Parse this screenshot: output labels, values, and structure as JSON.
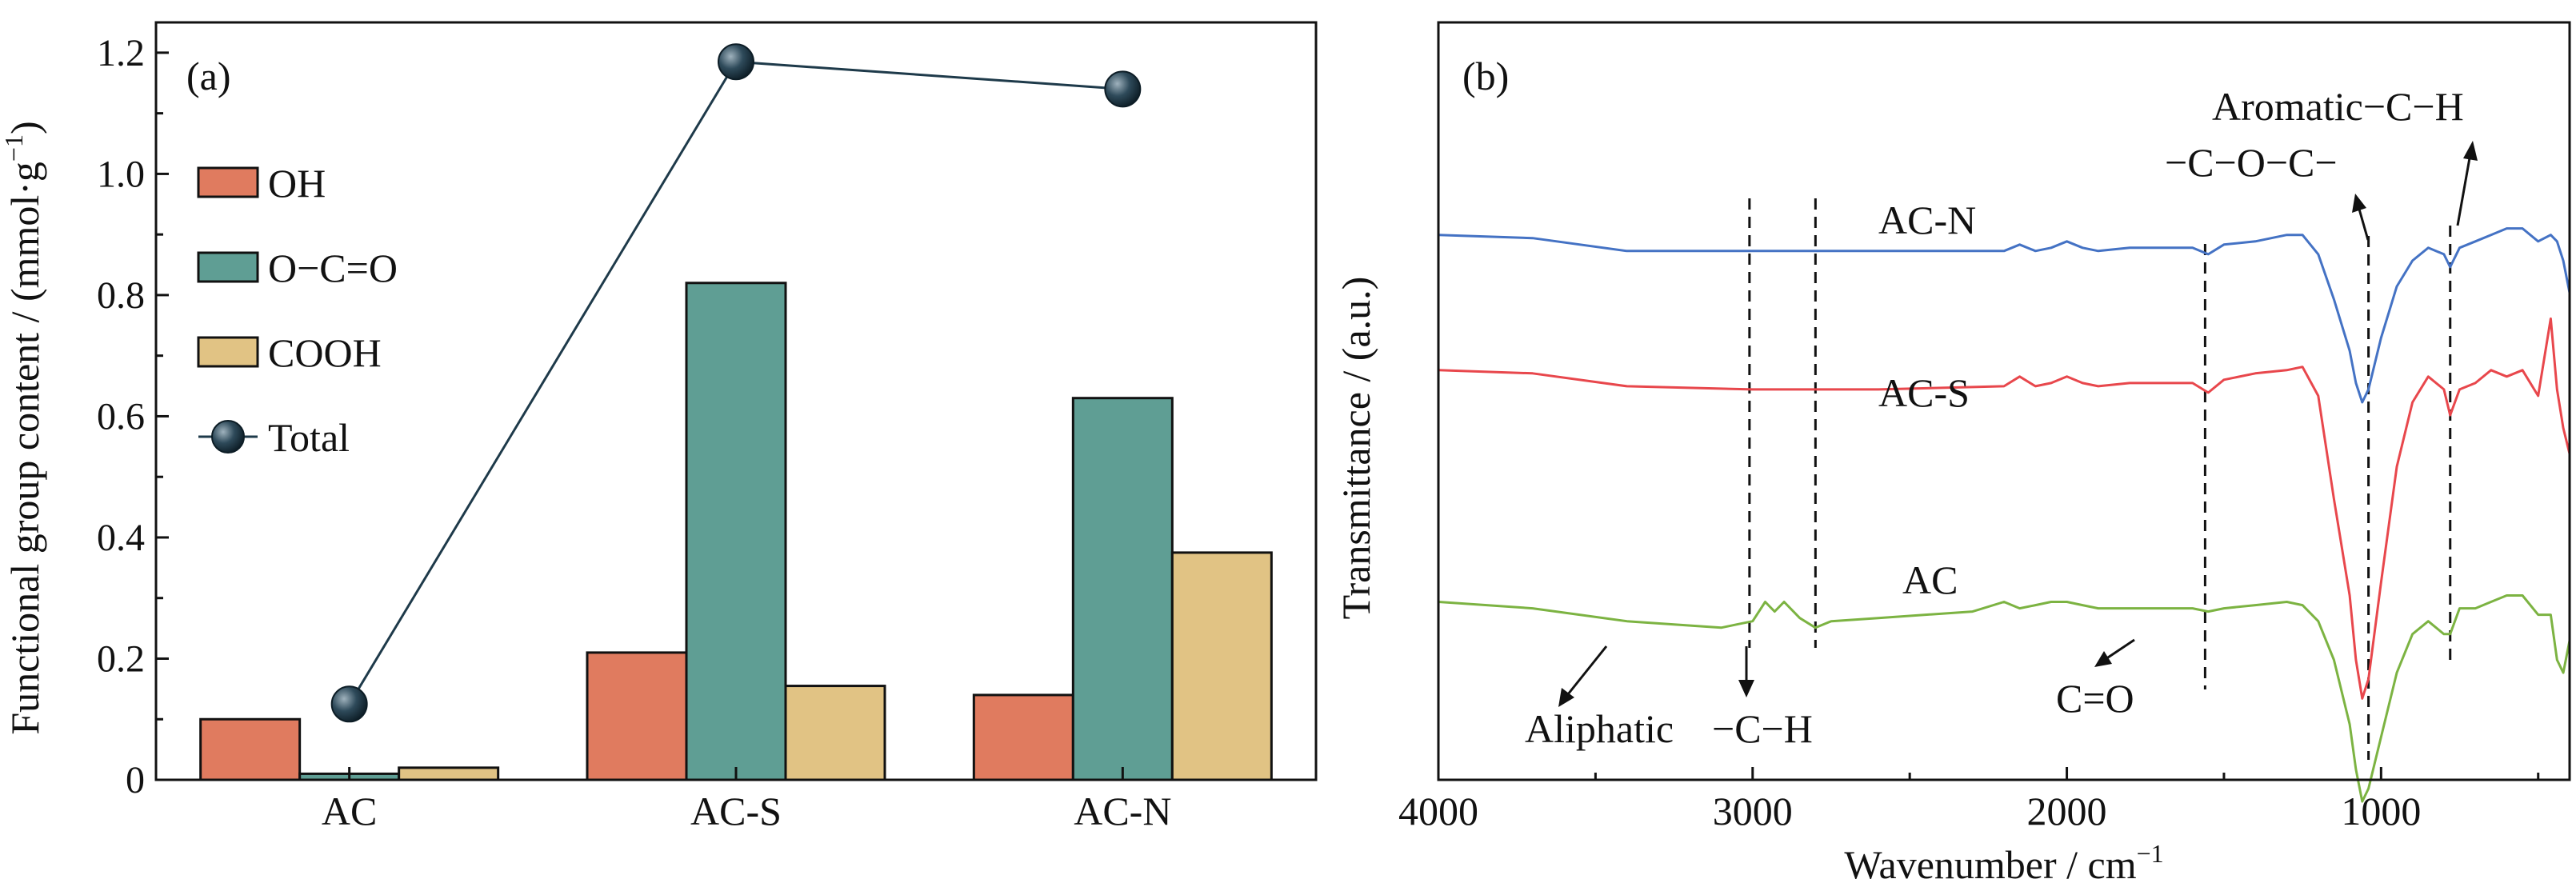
{
  "chart_data": [
    {
      "type": "bar",
      "panel_label": "(a)",
      "ylabel": "Functional group content / (mmol·g",
      "ylabel_sup": "−1",
      "ylabel_close": ")",
      "ylim": [
        0,
        1.25
      ],
      "yticks": [
        "0",
        "0.2",
        "0.4",
        "0.6",
        "0.8",
        "1.0",
        "1.2"
      ],
      "categories": [
        "AC",
        "AC-S",
        "AC-N"
      ],
      "series": [
        {
          "name": "OH",
          "values": [
            0.1,
            0.21,
            0.14
          ],
          "color": "#E07B5F"
        },
        {
          "name": "O−C=O",
          "values": [
            0.01,
            0.82,
            0.63
          ],
          "color": "#5F9E94"
        },
        {
          "name": "COOH",
          "values": [
            0.02,
            0.155,
            0.375
          ],
          "color": "#E1C384"
        }
      ],
      "line_series": {
        "name": "Total",
        "values": [
          0.125,
          1.185,
          1.14
        ],
        "color": "#1E3A4A"
      },
      "legend": "upper-left"
    },
    {
      "type": "line",
      "panel_label": "(b)",
      "xlabel": "Wavenumber / cm",
      "xlabel_sup": "−1",
      "ylabel": "Transmittance / (a.u.)",
      "xlim": [
        4000,
        400
      ],
      "xticks": [
        "4000",
        "3000",
        "2000",
        "1000"
      ],
      "series": [
        {
          "name": "AC-N",
          "color": "#4472C4",
          "x": [
            4000,
            3700,
            3400,
            3000,
            2600,
            2200,
            2150,
            2100,
            2050,
            2000,
            1950,
            1900,
            1800,
            1600,
            1550,
            1500,
            1400,
            1300,
            1250,
            1200,
            1150,
            1100,
            1080,
            1060,
            1040,
            1000,
            950,
            900,
            850,
            800,
            780,
            750,
            700,
            650,
            600,
            550,
            500,
            460,
            440,
            420,
            400
          ],
          "y": [
            0.86,
            0.855,
            0.835,
            0.835,
            0.835,
            0.835,
            0.845,
            0.835,
            0.84,
            0.85,
            0.84,
            0.835,
            0.84,
            0.84,
            0.83,
            0.845,
            0.85,
            0.86,
            0.86,
            0.83,
            0.76,
            0.68,
            0.63,
            0.6,
            0.62,
            0.7,
            0.78,
            0.82,
            0.84,
            0.83,
            0.81,
            0.84,
            0.85,
            0.86,
            0.87,
            0.87,
            0.85,
            0.86,
            0.85,
            0.82,
            0.77
          ]
        },
        {
          "name": "AC-S",
          "color": "#E8474C",
          "x": [
            4000,
            3700,
            3400,
            3000,
            2600,
            2200,
            2150,
            2100,
            2050,
            2000,
            1950,
            1900,
            1800,
            1600,
            1550,
            1500,
            1400,
            1300,
            1250,
            1200,
            1150,
            1100,
            1080,
            1060,
            1040,
            1000,
            950,
            900,
            850,
            800,
            780,
            750,
            700,
            650,
            600,
            550,
            500,
            460,
            440,
            420,
            400
          ],
          "y": [
            0.65,
            0.645,
            0.625,
            0.62,
            0.62,
            0.625,
            0.64,
            0.625,
            0.63,
            0.64,
            0.63,
            0.625,
            0.63,
            0.63,
            0.615,
            0.635,
            0.645,
            0.65,
            0.655,
            0.61,
            0.45,
            0.3,
            0.2,
            0.14,
            0.17,
            0.32,
            0.5,
            0.6,
            0.64,
            0.62,
            0.58,
            0.62,
            0.63,
            0.65,
            0.64,
            0.65,
            0.61,
            0.73,
            0.62,
            0.56,
            0.52
          ]
        },
        {
          "name": "AC",
          "color": "#7CB342",
          "x": [
            4000,
            3700,
            3400,
            3100,
            3050,
            3000,
            2960,
            2930,
            2900,
            2850,
            2800,
            2750,
            2600,
            2300,
            2200,
            2150,
            2100,
            2050,
            2000,
            1950,
            1900,
            1800,
            1600,
            1550,
            1500,
            1400,
            1300,
            1250,
            1200,
            1150,
            1100,
            1080,
            1060,
            1040,
            1000,
            950,
            900,
            850,
            800,
            780,
            750,
            700,
            650,
            600,
            550,
            500,
            460,
            440,
            420,
            400
          ],
          "y": [
            0.29,
            0.28,
            0.26,
            0.25,
            0.255,
            0.26,
            0.29,
            0.275,
            0.29,
            0.265,
            0.25,
            0.26,
            0.265,
            0.275,
            0.29,
            0.28,
            0.285,
            0.29,
            0.29,
            0.285,
            0.28,
            0.28,
            0.28,
            0.275,
            0.28,
            0.285,
            0.29,
            0.285,
            0.26,
            0.2,
            0.1,
            0.03,
            -0.02,
            0.0,
            0.08,
            0.18,
            0.24,
            0.26,
            0.24,
            0.24,
            0.28,
            0.28,
            0.29,
            0.3,
            0.3,
            0.27,
            0.27,
            0.2,
            0.18,
            0.23
          ]
        }
      ],
      "vlines": [
        3010,
        2800,
        1560,
        1040,
        780
      ],
      "annotations": {
        "aliphatic": "Aliphatic",
        "ch": "−C−H",
        "co": "C=O",
        "coc": "−C−O−C−",
        "aromatic": "Aromatic−C−H"
      }
    }
  ]
}
